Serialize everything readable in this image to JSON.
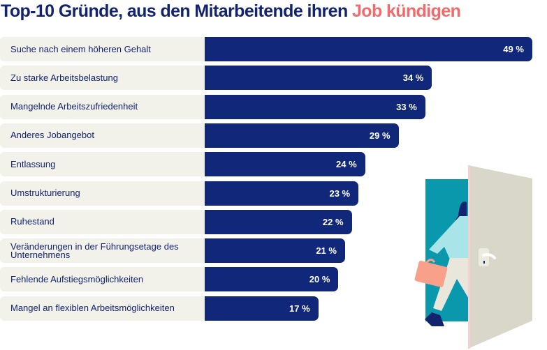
{
  "title": {
    "main": "Top-10 Gründe, aus den Mitarbeitende ihren",
    "accent": "Job kündigen"
  },
  "colors": {
    "title": "#13246e",
    "accent": "#f26a6a",
    "bar": "#10277a",
    "label_bg": "#f2f1ea"
  },
  "chart_data": {
    "type": "bar",
    "orientation": "horizontal",
    "title": "Top-10 Gründe, aus den Mitarbeitende ihren Job kündigen",
    "categories": [
      "Suche nach einem höheren Gehalt",
      "Zu starke Arbeitsbelastung",
      "Mangelnde Arbeitszufriedenheit",
      "Anderes Jobangebot",
      "Entlassung",
      "Umstrukturierung",
      "Ruhestand",
      "Veränderungen in der Führungsetage des Unternehmens",
      "Fehlende Aufstiegsmöglichkeiten",
      "Mangel an flexiblen Arbeitsmöglichkeiten"
    ],
    "values": [
      49,
      34,
      33,
      29,
      24,
      23,
      22,
      21,
      20,
      17
    ],
    "value_labels": [
      "49 %",
      "34 %",
      "33 %",
      "29 %",
      "24 %",
      "23 %",
      "22 %",
      "21 %",
      "20 %",
      "17 %"
    ],
    "unit": "%",
    "grid": false
  },
  "illustration": {
    "icon": "person-leaving-through-door-icon"
  }
}
